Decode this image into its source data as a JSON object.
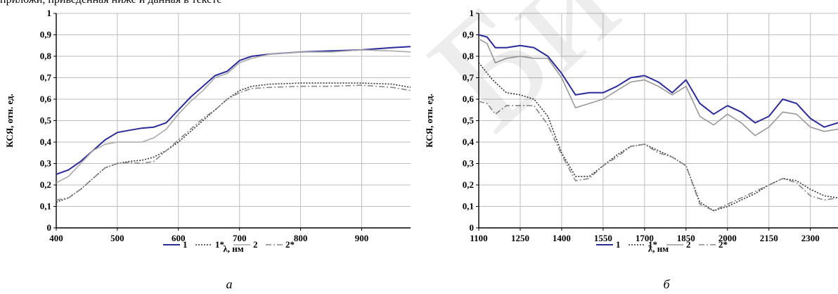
{
  "top_text": "приложи, приведенная ниже и данная в тексте",
  "watermark_text": "Библиотека БГУИР",
  "chart_data": [
    {
      "type": "line",
      "caption": "а",
      "xlabel": "λ, нм",
      "ylabel": "КСЯ, отн. ед.",
      "xlim": [
        400,
        980
      ],
      "ylim": [
        0,
        1
      ],
      "xticks": [
        400,
        500,
        600,
        700,
        800,
        900
      ],
      "xtick_labels": [
        "400",
        "500",
        "600",
        "700",
        "800",
        "900"
      ],
      "yticks": [
        0,
        0.1,
        0.2,
        0.3,
        0.4,
        0.5,
        0.6,
        0.7,
        0.8,
        0.9,
        1
      ],
      "ytick_labels": [
        "0",
        "0,1",
        "0,2",
        "0,3",
        "0,4",
        "0,5",
        "0,6",
        "0,7",
        "0,8",
        "0,9",
        "1"
      ],
      "grid": true,
      "legend_position": "bottom",
      "series": [
        {
          "name": "1",
          "color": "#2b2b9a",
          "dash": "solid",
          "points": [
            [
              400,
              0.25
            ],
            [
              420,
              0.27
            ],
            [
              440,
              0.31
            ],
            [
              460,
              0.36
            ],
            [
              480,
              0.41
            ],
            [
              500,
              0.445
            ],
            [
              520,
              0.455
            ],
            [
              540,
              0.465
            ],
            [
              560,
              0.47
            ],
            [
              580,
              0.49
            ],
            [
              600,
              0.55
            ],
            [
              620,
              0.61
            ],
            [
              640,
              0.66
            ],
            [
              660,
              0.71
            ],
            [
              680,
              0.73
            ],
            [
              700,
              0.78
            ],
            [
              720,
              0.8
            ],
            [
              750,
              0.81
            ],
            [
              800,
              0.82
            ],
            [
              850,
              0.825
            ],
            [
              900,
              0.83
            ],
            [
              950,
              0.84
            ],
            [
              980,
              0.845
            ]
          ]
        },
        {
          "name": "1*",
          "color": "#333333",
          "dash": "2,2",
          "points": [
            [
              400,
              0.12
            ],
            [
              420,
              0.14
            ],
            [
              440,
              0.18
            ],
            [
              460,
              0.23
            ],
            [
              480,
              0.28
            ],
            [
              500,
              0.3
            ],
            [
              520,
              0.31
            ],
            [
              540,
              0.315
            ],
            [
              560,
              0.33
            ],
            [
              580,
              0.36
            ],
            [
              600,
              0.4
            ],
            [
              620,
              0.45
            ],
            [
              640,
              0.5
            ],
            [
              660,
              0.55
            ],
            [
              680,
              0.6
            ],
            [
              700,
              0.64
            ],
            [
              720,
              0.66
            ],
            [
              750,
              0.67
            ],
            [
              800,
              0.675
            ],
            [
              850,
              0.675
            ],
            [
              900,
              0.675
            ],
            [
              950,
              0.67
            ],
            [
              980,
              0.655
            ]
          ]
        },
        {
          "name": "2",
          "color": "#aaaaaa",
          "dash": "solid",
          "points": [
            [
              400,
              0.21
            ],
            [
              420,
              0.24
            ],
            [
              440,
              0.3
            ],
            [
              460,
              0.36
            ],
            [
              480,
              0.39
            ],
            [
              500,
              0.4
            ],
            [
              520,
              0.4
            ],
            [
              540,
              0.4
            ],
            [
              560,
              0.42
            ],
            [
              580,
              0.46
            ],
            [
              600,
              0.53
            ],
            [
              620,
              0.59
            ],
            [
              640,
              0.64
            ],
            [
              660,
              0.7
            ],
            [
              680,
              0.72
            ],
            [
              700,
              0.77
            ],
            [
              720,
              0.79
            ],
            [
              750,
              0.81
            ],
            [
              800,
              0.82
            ],
            [
              850,
              0.82
            ],
            [
              900,
              0.83
            ],
            [
              950,
              0.825
            ],
            [
              980,
              0.82
            ]
          ]
        },
        {
          "name": "2*",
          "color": "#888888",
          "dash": "8,3,2,3",
          "points": [
            [
              400,
              0.13
            ],
            [
              420,
              0.14
            ],
            [
              440,
              0.18
            ],
            [
              460,
              0.23
            ],
            [
              480,
              0.28
            ],
            [
              500,
              0.3
            ],
            [
              520,
              0.305
            ],
            [
              540,
              0.3
            ],
            [
              560,
              0.31
            ],
            [
              580,
              0.36
            ],
            [
              600,
              0.41
            ],
            [
              620,
              0.46
            ],
            [
              640,
              0.51
            ],
            [
              660,
              0.55
            ],
            [
              680,
              0.6
            ],
            [
              700,
              0.63
            ],
            [
              720,
              0.65
            ],
            [
              750,
              0.655
            ],
            [
              800,
              0.66
            ],
            [
              850,
              0.66
            ],
            [
              900,
              0.665
            ],
            [
              950,
              0.655
            ],
            [
              980,
              0.64
            ]
          ]
        }
      ]
    },
    {
      "type": "line",
      "caption": "б",
      "xlabel": "λ, нм",
      "ylabel": "КСЯ, отн. ед.",
      "xlim": [
        1100,
        2400
      ],
      "ylim": [
        0,
        1
      ],
      "xticks": [
        1100,
        1250,
        1400,
        1550,
        1700,
        1850,
        2000,
        2150,
        2300
      ],
      "xtick_labels": [
        "1100",
        "1250",
        "1400",
        "1550",
        "1700",
        "1850",
        "2000",
        "2150",
        "2300"
      ],
      "yticks": [
        0,
        0.1,
        0.2,
        0.3,
        0.4,
        0.5,
        0.6,
        0.7,
        0.8,
        0.9,
        1
      ],
      "ytick_labels": [
        "0",
        "0,1",
        "0,2",
        "0,3",
        "0,4",
        "0,5",
        "0,6",
        "0,7",
        "0,8",
        "0,9",
        "1"
      ],
      "grid": true,
      "legend_position": "bottom",
      "series": [
        {
          "name": "1",
          "color": "#2b2b9a",
          "dash": "solid",
          "points": [
            [
              1100,
              0.9
            ],
            [
              1130,
              0.89
            ],
            [
              1160,
              0.84
            ],
            [
              1200,
              0.84
            ],
            [
              1250,
              0.85
            ],
            [
              1300,
              0.84
            ],
            [
              1350,
              0.8
            ],
            [
              1400,
              0.72
            ],
            [
              1450,
              0.62
            ],
            [
              1500,
              0.63
            ],
            [
              1550,
              0.63
            ],
            [
              1600,
              0.66
            ],
            [
              1650,
              0.7
            ],
            [
              1700,
              0.71
            ],
            [
              1750,
              0.68
            ],
            [
              1800,
              0.63
            ],
            [
              1850,
              0.69
            ],
            [
              1900,
              0.58
            ],
            [
              1950,
              0.53
            ],
            [
              2000,
              0.57
            ],
            [
              2050,
              0.54
            ],
            [
              2100,
              0.49
            ],
            [
              2150,
              0.52
            ],
            [
              2200,
              0.6
            ],
            [
              2250,
              0.58
            ],
            [
              2300,
              0.51
            ],
            [
              2350,
              0.47
            ],
            [
              2400,
              0.49
            ]
          ]
        },
        {
          "name": "1*",
          "color": "#333333",
          "dash": "2,2",
          "points": [
            [
              1100,
              0.77
            ],
            [
              1150,
              0.69
            ],
            [
              1200,
              0.63
            ],
            [
              1250,
              0.62
            ],
            [
              1300,
              0.6
            ],
            [
              1350,
              0.52
            ],
            [
              1400,
              0.35
            ],
            [
              1450,
              0.24
            ],
            [
              1500,
              0.24
            ],
            [
              1550,
              0.29
            ],
            [
              1600,
              0.34
            ],
            [
              1650,
              0.38
            ],
            [
              1700,
              0.39
            ],
            [
              1750,
              0.36
            ],
            [
              1800,
              0.33
            ],
            [
              1850,
              0.29
            ],
            [
              1900,
              0.12
            ],
            [
              1950,
              0.08
            ],
            [
              2000,
              0.1
            ],
            [
              2050,
              0.13
            ],
            [
              2100,
              0.16
            ],
            [
              2150,
              0.2
            ],
            [
              2200,
              0.23
            ],
            [
              2250,
              0.22
            ],
            [
              2300,
              0.18
            ],
            [
              2350,
              0.15
            ],
            [
              2400,
              0.14
            ]
          ]
        },
        {
          "name": "2",
          "color": "#999999",
          "dash": "solid",
          "points": [
            [
              1100,
              0.88
            ],
            [
              1130,
              0.86
            ],
            [
              1160,
              0.77
            ],
            [
              1200,
              0.79
            ],
            [
              1250,
              0.8
            ],
            [
              1300,
              0.79
            ],
            [
              1350,
              0.79
            ],
            [
              1400,
              0.7
            ],
            [
              1450,
              0.56
            ],
            [
              1500,
              0.58
            ],
            [
              1550,
              0.6
            ],
            [
              1600,
              0.64
            ],
            [
              1650,
              0.68
            ],
            [
              1700,
              0.69
            ],
            [
              1750,
              0.66
            ],
            [
              1800,
              0.62
            ],
            [
              1850,
              0.66
            ],
            [
              1900,
              0.52
            ],
            [
              1950,
              0.48
            ],
            [
              2000,
              0.53
            ],
            [
              2050,
              0.49
            ],
            [
              2100,
              0.43
            ],
            [
              2150,
              0.47
            ],
            [
              2200,
              0.54
            ],
            [
              2250,
              0.53
            ],
            [
              2300,
              0.47
            ],
            [
              2350,
              0.45
            ],
            [
              2400,
              0.46
            ]
          ]
        },
        {
          "name": "2*",
          "color": "#888888",
          "dash": "8,3,2,3",
          "points": [
            [
              1100,
              0.59
            ],
            [
              1130,
              0.58
            ],
            [
              1160,
              0.53
            ],
            [
              1200,
              0.57
            ],
            [
              1250,
              0.57
            ],
            [
              1300,
              0.57
            ],
            [
              1350,
              0.48
            ],
            [
              1400,
              0.34
            ],
            [
              1450,
              0.22
            ],
            [
              1500,
              0.23
            ],
            [
              1550,
              0.29
            ],
            [
              1600,
              0.33
            ],
            [
              1650,
              0.38
            ],
            [
              1700,
              0.39
            ],
            [
              1750,
              0.35
            ],
            [
              1800,
              0.33
            ],
            [
              1850,
              0.29
            ],
            [
              1900,
              0.11
            ],
            [
              1950,
              0.08
            ],
            [
              2000,
              0.11
            ],
            [
              2050,
              0.14
            ],
            [
              2100,
              0.17
            ],
            [
              2150,
              0.2
            ],
            [
              2200,
              0.23
            ],
            [
              2250,
              0.21
            ],
            [
              2300,
              0.15
            ],
            [
              2350,
              0.13
            ],
            [
              2400,
              0.14
            ]
          ]
        }
      ]
    }
  ]
}
